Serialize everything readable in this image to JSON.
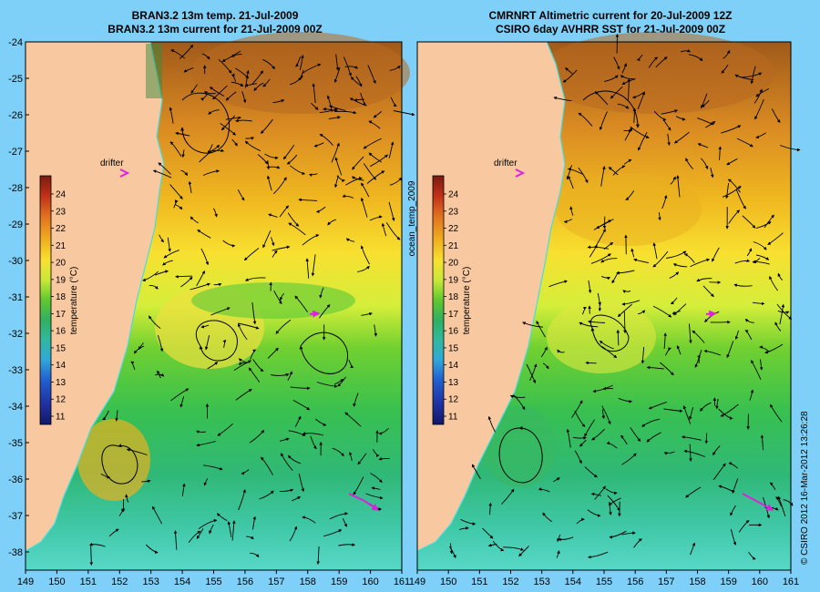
{
  "left_panel": {
    "title_line1": "BRAN3.2 13m temp. 21-Jul-2009",
    "title_line2": "BRAN3.2 13m current for 21-Jul-2009 00Z"
  },
  "right_panel": {
    "title_line1": "CMRNRT Altimetric current for 20-Jul-2009 12Z",
    "title_line2": "CSIRO 6day AVHRR SST for 21-Jul-2009 00Z"
  },
  "x_axis_ticks": [
    "149",
    "150",
    "151",
    "152",
    "153",
    "154",
    "155",
    "156",
    "157",
    "158",
    "159",
    "160",
    "161"
  ],
  "y_axis_ticks": [
    "-24",
    "-25",
    "-26",
    "-27",
    "-28",
    "-29",
    "-30",
    "-31",
    "-32",
    "-33",
    "-34",
    "-35",
    "-36",
    "-37",
    "-38"
  ],
  "colorbar": {
    "label": "temperature (°C)",
    "ticks": [
      "24",
      "23",
      "22",
      "21",
      "20",
      "19",
      "18",
      "17",
      "16",
      "15",
      "14",
      "13",
      "12",
      "11"
    ]
  },
  "drifter_label": "drifter",
  "divider_label": "ocean_temp_2009",
  "credit": "© CSIRO 2012   16-Mar-2012 13:26:28",
  "colors": {
    "land": "#f8c8a0",
    "background": "#7fd0f8",
    "drifter": "#e020e0",
    "coastline": "#40e0e0"
  }
}
